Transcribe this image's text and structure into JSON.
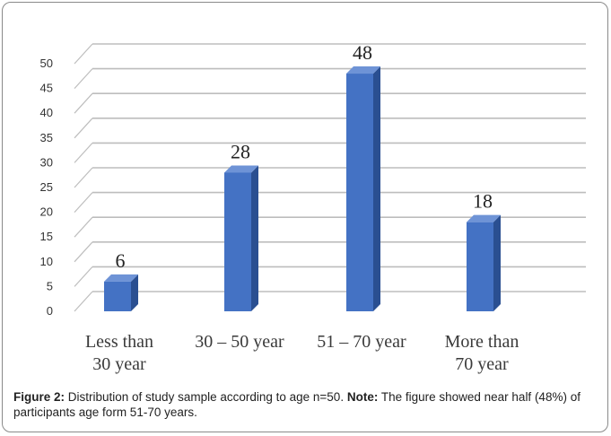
{
  "chart_data": {
    "type": "bar",
    "categories": [
      "Less than\n30 year",
      "30 – 50 year",
      "51 – 70 year",
      "More than\n70 year"
    ],
    "values": [
      6,
      28,
      48,
      18
    ],
    "data_labels": [
      "6",
      "28",
      "48",
      "18"
    ],
    "ylim": [
      0,
      50
    ],
    "yticks": [
      "0",
      "5",
      "10",
      "15",
      "20",
      "25",
      "30",
      "35",
      "40",
      "45",
      "50"
    ],
    "grid": true,
    "bar_color": "#4472C4",
    "bar_side_color": "#2a4f91",
    "bar_top_color": "#6e93d6"
  },
  "caption": {
    "figure_label": "Figure 2:",
    "figure_text": " Distribution of study sample according to age n=50. ",
    "note_label": "Note:",
    "note_text": " The figure showed near half (48%) of participants age form 51-70 years."
  }
}
